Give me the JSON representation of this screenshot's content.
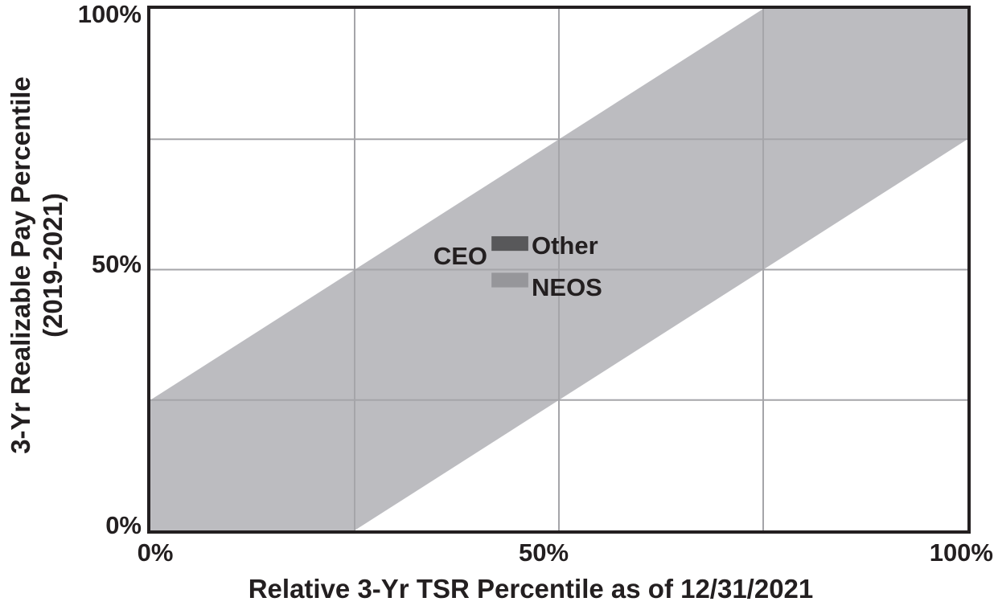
{
  "chart_data": {
    "type": "scatter",
    "title": "",
    "xlabel": "Relative 3-Yr TSR Percentile as of 12/31/2021",
    "ylabel": "3-Yr Realizable Pay Percentile (2019-2021)",
    "ylabel_lines": [
      "3-Yr Realizable Pay Percentile",
      "(2019-2021)"
    ],
    "xlim": [
      0,
      100
    ],
    "ylim": [
      0,
      100
    ],
    "grid": true,
    "legend_position": "none",
    "x_ticks": [
      {
        "value": 0,
        "label": "0%"
      },
      {
        "value": 50,
        "label": "50%"
      },
      {
        "value": 100,
        "label": "100%"
      }
    ],
    "y_ticks": [
      {
        "value": 0,
        "label": "0%"
      },
      {
        "value": 50,
        "label": "50%"
      },
      {
        "value": 100,
        "label": "100%"
      }
    ],
    "gridlines": {
      "x": [
        25,
        50,
        75
      ],
      "y": [
        25,
        50,
        75
      ],
      "color": "#a5a5a9"
    },
    "band": {
      "shape": "diagonal-band",
      "upper_offset": 25,
      "lower_offset": -25,
      "color": "#bcbcc0"
    },
    "series": [
      {
        "name": "CEO",
        "x": 44,
        "y": 55,
        "marker": "dash",
        "color": "#58585a"
      },
      {
        "name": "Other NEOS",
        "x": 44,
        "y": 48,
        "marker": "dash",
        "color": "#96969a"
      }
    ],
    "point_labels": [
      {
        "text": "CEO"
      },
      {
        "text": "Other"
      },
      {
        "text": "NEOS"
      }
    ]
  },
  "colors": {
    "axis": "#231f20",
    "text": "#231f20",
    "background": "#ffffff"
  }
}
